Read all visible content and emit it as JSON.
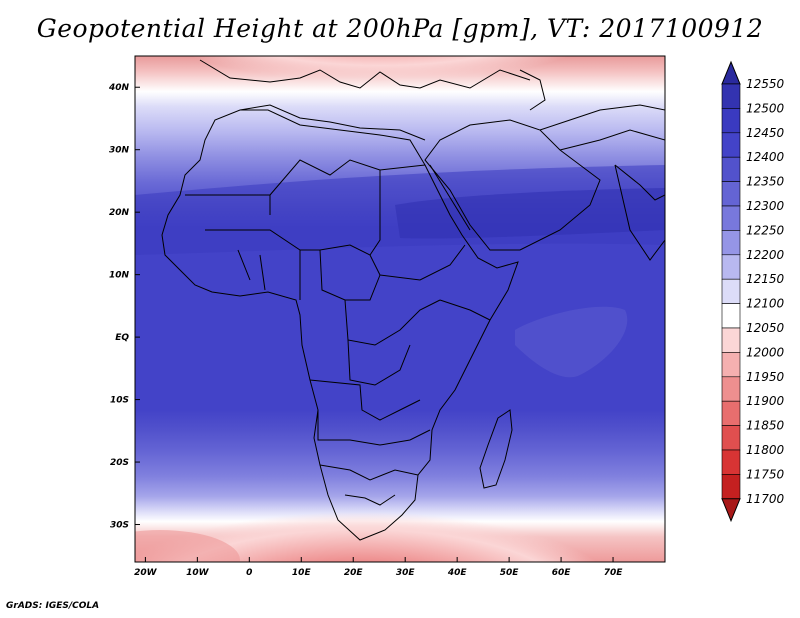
{
  "title": "Geopotential Height at 200hPa [gpm], VT: 2017100912",
  "credit": "GrADS: IGES/COLA",
  "map": {
    "lon_ticks": [
      {
        "lon": -20,
        "label": "20W"
      },
      {
        "lon": -10,
        "label": "10W"
      },
      {
        "lon": 0,
        "label": "0"
      },
      {
        "lon": 10,
        "label": "10E"
      },
      {
        "lon": 20,
        "label": "20E"
      },
      {
        "lon": 30,
        "label": "30E"
      },
      {
        "lon": 40,
        "label": "40E"
      },
      {
        "lon": 50,
        "label": "50E"
      },
      {
        "lon": 60,
        "label": "60E"
      },
      {
        "lon": 70,
        "label": "70E"
      }
    ],
    "lat_ticks": [
      {
        "lat": 40,
        "label": "40N"
      },
      {
        "lat": 30,
        "label": "30N"
      },
      {
        "lat": 20,
        "label": "20N"
      },
      {
        "lat": 10,
        "label": "10N"
      },
      {
        "lat": 0,
        "label": "EQ"
      },
      {
        "lat": -10,
        "label": "10S"
      },
      {
        "lat": -20,
        "label": "20S"
      },
      {
        "lat": -30,
        "label": "30S"
      }
    ],
    "lon_range": [
      -22,
      80
    ],
    "lat_range": [
      -36,
      45
    ]
  },
  "colorbar": {
    "levels": [
      "12550",
      "12500",
      "12450",
      "12400",
      "12350",
      "12300",
      "12250",
      "12200",
      "12150",
      "12100",
      "12050",
      "12000",
      "11950",
      "11900",
      "11850",
      "11800",
      "11750",
      "11700"
    ],
    "colors": [
      "#2a2a9e",
      "#3333b0",
      "#3a3ac0",
      "#4343c8",
      "#5252cc",
      "#6464d4",
      "#7878dc",
      "#9595e6",
      "#b8b8f0",
      "#dcdcf8",
      "#ffffff",
      "#fbd6d6",
      "#f5b0b0",
      "#ee8f8f",
      "#e86e6e",
      "#e04f4f",
      "#d83434",
      "#c42020",
      "#a81818"
    ]
  }
}
